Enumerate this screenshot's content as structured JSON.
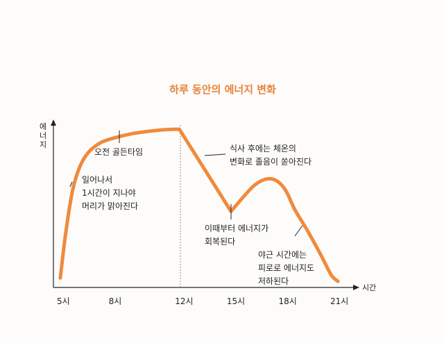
{
  "chart_data": {
    "type": "line",
    "title": "하루 동안의 에너지 변화",
    "ylabel": "에너지",
    "xlabel": "시간",
    "x_ticks": [
      "5시",
      "8시",
      "12시",
      "15시",
      "18시",
      "21시"
    ],
    "series": [
      {
        "name": "에너지",
        "x": [
          4.9,
          5.2,
          5.6,
          6.0,
          6.5,
          7.2,
          8.0,
          9.0,
          10.0,
          11.0,
          11.8,
          14.8,
          15.5,
          16.2,
          16.9,
          17.5,
          18.0,
          18.5,
          19.2,
          20.0,
          20.6,
          21.0
        ],
        "values": [
          4,
          30,
          56,
          70,
          79,
          85,
          88,
          90.5,
          92,
          93,
          93.3,
          44,
          52.5,
          60,
          63.5,
          62,
          56,
          45,
          33,
          18,
          6,
          2
        ]
      }
    ],
    "xlim": [
      4.5,
      22
    ],
    "ylim": [
      0,
      100
    ],
    "annotations": [
      {
        "id": "wake",
        "lines": [
          "일어나서",
          "1시간이 지나야",
          "머리가 맑아진다"
        ]
      },
      {
        "id": "golden",
        "lines": [
          "오전 골든타임"
        ]
      },
      {
        "id": "lunch",
        "lines": [
          "식사 후에는 체온의",
          "변화로 졸음이 쏟아진다"
        ]
      },
      {
        "id": "recover",
        "lines": [
          "이때부터 에너지가",
          "회복된다"
        ]
      },
      {
        "id": "night",
        "lines": [
          "야근 시간에는",
          "피로로 에너지도",
          "저하된다"
        ]
      }
    ],
    "colors": {
      "line": "#f08a3c",
      "title": "#e8823a",
      "axis": "#222222"
    }
  }
}
